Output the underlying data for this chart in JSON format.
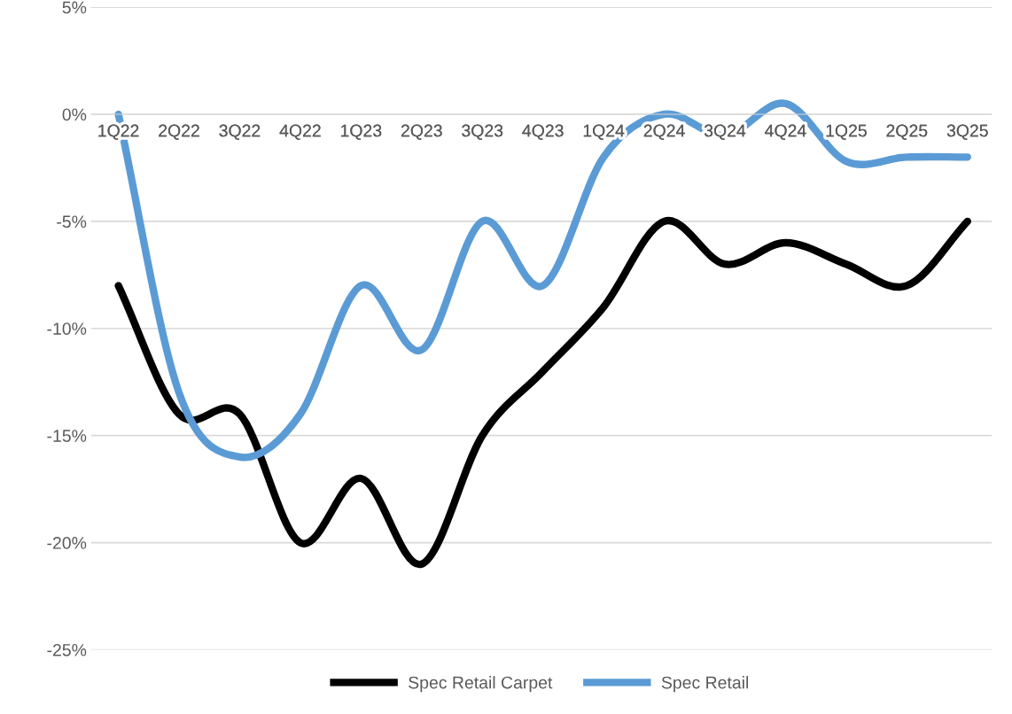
{
  "chart_data": {
    "type": "line",
    "categories": [
      "1Q22",
      "2Q22",
      "3Q22",
      "4Q22",
      "1Q23",
      "2Q23",
      "3Q23",
      "4Q23",
      "1Q24",
      "2Q24",
      "3Q24",
      "4Q24",
      "1Q25",
      "2Q25",
      "3Q25"
    ],
    "series": [
      {
        "name": "Spec Retail Carpet",
        "color": "#000000",
        "values": [
          -8,
          -14,
          -14,
          -20,
          -17,
          -21,
          -15,
          -12,
          -9,
          -5,
          -7,
          -6,
          -7,
          -8,
          -5
        ]
      },
      {
        "name": "Spec Retail",
        "color": "#5b9bd5",
        "values": [
          0,
          -13,
          -16,
          -14,
          -8,
          -11,
          -5,
          -8,
          -2,
          0,
          -1,
          0.5,
          -2.2,
          -2,
          -2
        ]
      }
    ],
    "ylim": [
      -25,
      5
    ],
    "yticks": [
      {
        "value": 5,
        "label": "5%"
      },
      {
        "value": 0,
        "label": "0%"
      },
      {
        "value": -5,
        "label": "-5%"
      },
      {
        "value": -10,
        "label": "-10%"
      },
      {
        "value": -15,
        "label": "-15%"
      },
      {
        "value": -20,
        "label": "-20%"
      },
      {
        "value": -25,
        "label": "-25%"
      }
    ],
    "grid": "y",
    "legend": "bottom",
    "marker": "none",
    "line_style": "solid"
  }
}
